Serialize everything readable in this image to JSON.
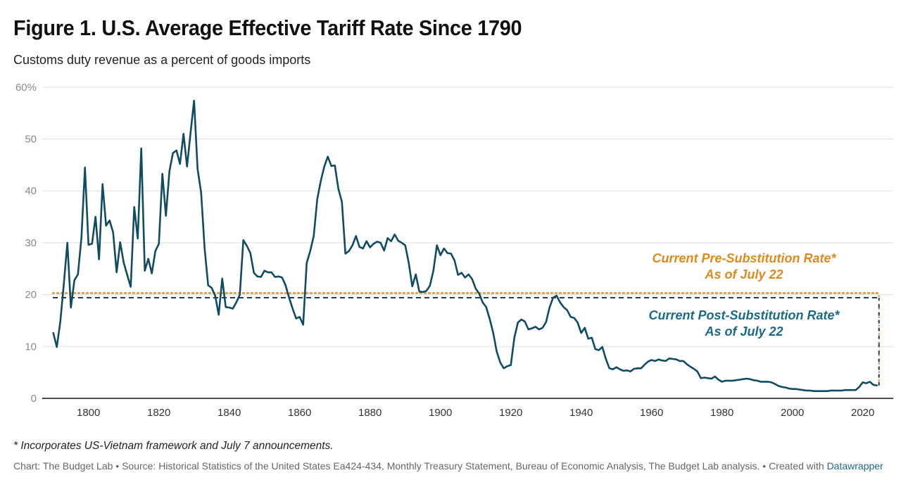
{
  "title": "Figure 1. U.S. Average Effective Tariff Rate Since 1790",
  "subtitle": "Customs duty revenue as a percent of goods imports",
  "footnote": "* Incorporates US-Vietnam framework and July 7 announcements.",
  "source_text": "Chart: The Budget Lab • Source: Historical Statistics of the United States Ea424-434, Monthly Treasury Statement, Bureau of Economic Analysis, The Budget Lab analysis. • Created with ",
  "source_link": "Datawrapper",
  "colors": {
    "series": "#0f4c63",
    "pre_substitution": "#e08a1e",
    "post_substitution": "#1a3f5c",
    "post_label": "#1b6a88",
    "grid": "#e3e3e3",
    "baseline": "#111111"
  },
  "chart_data": {
    "type": "line",
    "title": "Figure 1. U.S. Average Effective Tariff Rate Since 1790",
    "subtitle": "Customs duty revenue as a percent of goods imports",
    "xlabel": "",
    "ylabel": "",
    "xlim": [
      1790,
      2025
    ],
    "ylim": [
      0,
      60
    ],
    "grid": true,
    "x_ticks": [
      1800,
      1820,
      1840,
      1860,
      1880,
      1900,
      1920,
      1940,
      1960,
      1980,
      2000,
      2020
    ],
    "y_ticks": [
      0,
      10,
      20,
      30,
      40,
      50,
      60
    ],
    "y_tick_labels": [
      "0",
      "10",
      "20",
      "30",
      "40",
      "50",
      "60%"
    ],
    "series": [
      {
        "name": "Average effective tariff rate",
        "x": [
          1790,
          1791,
          1792,
          1793,
          1794,
          1795,
          1796,
          1797,
          1798,
          1799,
          1800,
          1801,
          1802,
          1803,
          1804,
          1805,
          1806,
          1807,
          1808,
          1809,
          1810,
          1811,
          1812,
          1813,
          1814,
          1815,
          1816,
          1817,
          1818,
          1819,
          1820,
          1821,
          1822,
          1823,
          1824,
          1825,
          1826,
          1827,
          1828,
          1829,
          1830,
          1831,
          1832,
          1833,
          1834,
          1835,
          1836,
          1837,
          1838,
          1839,
          1840,
          1841,
          1842,
          1843,
          1844,
          1845,
          1846,
          1847,
          1848,
          1849,
          1850,
          1851,
          1852,
          1853,
          1854,
          1855,
          1856,
          1857,
          1858,
          1859,
          1860,
          1861,
          1862,
          1863,
          1864,
          1865,
          1866,
          1867,
          1868,
          1869,
          1870,
          1871,
          1872,
          1873,
          1874,
          1875,
          1876,
          1877,
          1878,
          1879,
          1880,
          1881,
          1882,
          1883,
          1884,
          1885,
          1886,
          1887,
          1888,
          1889,
          1890,
          1891,
          1892,
          1893,
          1894,
          1895,
          1896,
          1897,
          1898,
          1899,
          1900,
          1901,
          1902,
          1903,
          1904,
          1905,
          1906,
          1907,
          1908,
          1909,
          1910,
          1911,
          1912,
          1913,
          1914,
          1915,
          1916,
          1917,
          1918,
          1919,
          1920,
          1921,
          1922,
          1923,
          1924,
          1925,
          1926,
          1927,
          1928,
          1929,
          1930,
          1931,
          1932,
          1933,
          1934,
          1935,
          1936,
          1937,
          1938,
          1939,
          1940,
          1941,
          1942,
          1943,
          1944,
          1945,
          1946,
          1947,
          1948,
          1949,
          1950,
          1951,
          1952,
          1953,
          1954,
          1955,
          1956,
          1957,
          1958,
          1959,
          1960,
          1961,
          1962,
          1963,
          1964,
          1965,
          1966,
          1967,
          1968,
          1969,
          1970,
          1971,
          1972,
          1973,
          1974,
          1975,
          1976,
          1977,
          1978,
          1979,
          1980,
          1981,
          1982,
          1983,
          1984,
          1985,
          1986,
          1987,
          1988,
          1989,
          1990,
          1991,
          1992,
          1993,
          1994,
          1995,
          1996,
          1997,
          1998,
          1999,
          2000,
          2001,
          2002,
          2003,
          2004,
          2005,
          2006,
          2007,
          2008,
          2009,
          2010,
          2011,
          2012,
          2013,
          2014,
          2015,
          2016,
          2017,
          2018,
          2019,
          2020,
          2021,
          2022,
          2023,
          2024
        ],
        "y": [
          12.6,
          9.9,
          14.8,
          22.1,
          30.0,
          17.5,
          22.8,
          23.9,
          31.0,
          44.5,
          29.6,
          29.8,
          35.0,
          26.8,
          41.3,
          33.3,
          34.3,
          32.0,
          24.3,
          30.1,
          26.2,
          23.8,
          21.5,
          36.9,
          30.8,
          48.2,
          24.6,
          26.9,
          24.1,
          28.4,
          29.8,
          43.3,
          35.2,
          43.8,
          47.3,
          47.8,
          45.2,
          51.0,
          44.7,
          51.2,
          57.4,
          44.2,
          39.7,
          28.9,
          21.8,
          21.3,
          19.8,
          16.1,
          23.1,
          17.6,
          17.5,
          17.3,
          18.5,
          20.0,
          30.5,
          29.4,
          28.0,
          24.2,
          23.5,
          23.4,
          24.6,
          24.3,
          24.3,
          23.4,
          23.5,
          23.3,
          21.8,
          19.4,
          17.3,
          15.4,
          15.7,
          14.2,
          26.1,
          28.4,
          31.3,
          38.4,
          41.9,
          44.7,
          46.6,
          44.8,
          44.9,
          40.4,
          37.9,
          27.9,
          28.4,
          29.5,
          31.3,
          29.2,
          28.9,
          30.3,
          29.1,
          29.8,
          30.2,
          30.0,
          28.5,
          30.9,
          30.3,
          31.6,
          30.4,
          30.0,
          29.5,
          26.1,
          21.6,
          23.9,
          20.6,
          20.5,
          20.7,
          21.7,
          24.6,
          29.5,
          27.6,
          28.9,
          28.0,
          27.9,
          26.6,
          23.8,
          24.2,
          23.3,
          23.9,
          23.0,
          21.2,
          20.2,
          18.5,
          17.6,
          15.3,
          12.6,
          9.0,
          6.9,
          5.8,
          6.2,
          6.4,
          11.7,
          14.6,
          15.2,
          14.8,
          13.3,
          13.5,
          13.8,
          13.3,
          13.6,
          14.7,
          17.5,
          19.4,
          19.8,
          18.5,
          17.6,
          17.0,
          15.7,
          15.5,
          14.6,
          12.6,
          13.6,
          11.5,
          11.7,
          9.5,
          9.3,
          9.9,
          7.6,
          5.8,
          5.6,
          6.0,
          5.6,
          5.3,
          5.4,
          5.2,
          5.7,
          5.8,
          5.8,
          6.5,
          7.1,
          7.4,
          7.2,
          7.5,
          7.3,
          7.2,
          7.7,
          7.6,
          7.5,
          7.2,
          7.2,
          6.6,
          6.1,
          5.7,
          5.2,
          3.9,
          4.0,
          3.9,
          3.8,
          4.2,
          3.6,
          3.2,
          3.4,
          3.4,
          3.4,
          3.5,
          3.6,
          3.7,
          3.8,
          3.7,
          3.5,
          3.4,
          3.2,
          3.2,
          3.2,
          3.1,
          2.8,
          2.4,
          2.2,
          2.1,
          1.9,
          1.8,
          1.8,
          1.7,
          1.6,
          1.5,
          1.5,
          1.4,
          1.4,
          1.4,
          1.4,
          1.4,
          1.5,
          1.5,
          1.5,
          1.5,
          1.6,
          1.6,
          1.6,
          1.6,
          2.2,
          3.1,
          2.9,
          3.2,
          2.6,
          2.5
        ]
      }
    ],
    "reference_lines": [
      {
        "name": "Current Pre-Substitution Rate",
        "value": 20.3,
        "style": "dotted",
        "label_line1": "Current Pre-Substitution Rate*",
        "label_line2": "As of July 22"
      },
      {
        "name": "Current Post-Substitution Rate",
        "value": 19.4,
        "style": "dashed",
        "label_line1": "Current Post-Substitution Rate*",
        "label_line2": "As of July 22"
      }
    ],
    "legend": "none"
  }
}
